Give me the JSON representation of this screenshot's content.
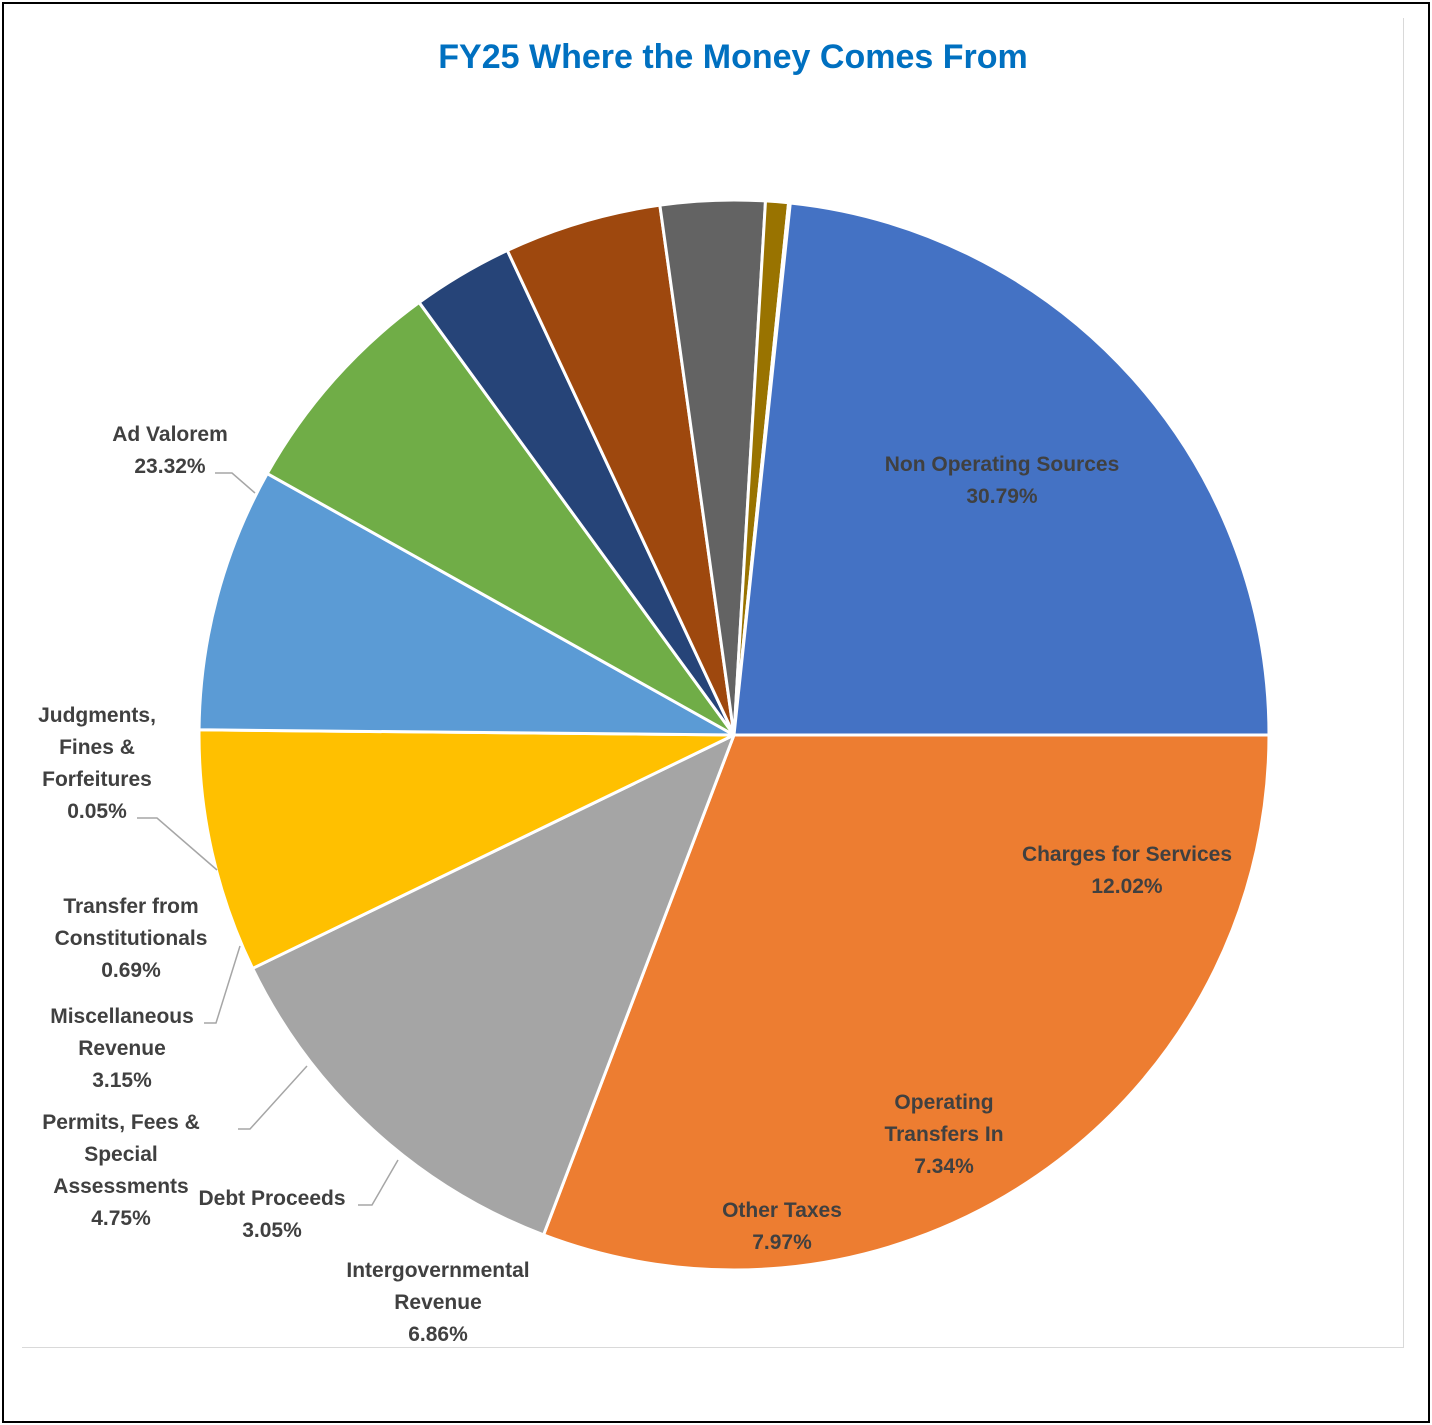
{
  "chart_data": {
    "type": "pie",
    "title": "FY25 Where the Money Comes From",
    "title_color": "#0070c0",
    "slices": [
      {
        "name": "Non Operating Sources",
        "lines": [
          "Non Operating Sources"
        ],
        "value": 30.79,
        "pct_label": "30.79%",
        "color": "#ed7d31"
      },
      {
        "name": "Charges for Services",
        "lines": [
          "Charges for Services"
        ],
        "value": 12.02,
        "pct_label": "12.02%",
        "color": "#a5a5a5"
      },
      {
        "name": "Operating Transfers In",
        "lines": [
          "Operating",
          "Transfers In"
        ],
        "value": 7.34,
        "pct_label": "7.34%",
        "color": "#ffc000"
      },
      {
        "name": "Other Taxes",
        "lines": [
          "Other Taxes"
        ],
        "value": 7.97,
        "pct_label": "7.97%",
        "color": "#5b9bd5"
      },
      {
        "name": "Intergovernmental Revenue",
        "lines": [
          "Intergovernmental",
          "Revenue"
        ],
        "value": 6.86,
        "pct_label": "6.86%",
        "color": "#70ad47"
      },
      {
        "name": "Debt Proceeds",
        "lines": [
          "Debt Proceeds"
        ],
        "value": 3.05,
        "pct_label": "3.05%",
        "color": "#264478"
      },
      {
        "name": "Permits, Fees & Special Assessments",
        "lines": [
          "Permits, Fees &",
          "Special",
          "Assessments"
        ],
        "value": 4.75,
        "pct_label": "4.75%",
        "color": "#9e480e"
      },
      {
        "name": "Miscellaneous Revenue",
        "lines": [
          "Miscellaneous",
          "Revenue"
        ],
        "value": 3.15,
        "pct_label": "3.15%",
        "color": "#636363"
      },
      {
        "name": "Transfer from Constitutionals",
        "lines": [
          "Transfer from",
          "Constitutionals"
        ],
        "value": 0.69,
        "pct_label": "0.69%",
        "color": "#997300"
      },
      {
        "name": "Judgments, Fines & Forfeitures",
        "lines": [
          "Judgments,",
          "Fines &",
          "Forfeitures"
        ],
        "value": 0.05,
        "pct_label": "0.05%",
        "color": "#255e91"
      },
      {
        "name": "Ad Valorem",
        "lines": [
          "Ad Valorem"
        ],
        "value": 23.32,
        "pct_label": "23.32%",
        "color": "#4472c4"
      }
    ],
    "start_angle": "3 o'clock",
    "direction": "clockwise"
  }
}
